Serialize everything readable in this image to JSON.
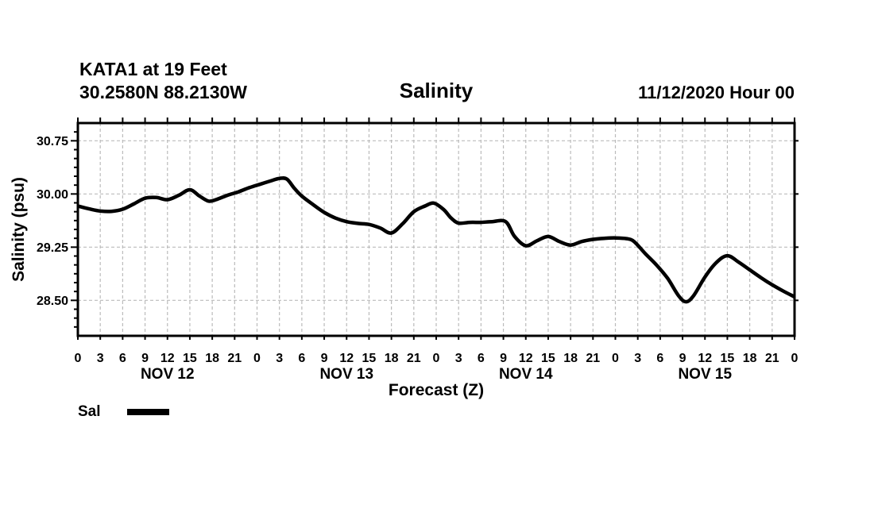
{
  "header": {
    "station_line1": "KATA1 at 19 Feet",
    "station_line2": "30.2580N 88.2130W",
    "title": "Salinity",
    "run_time": "11/12/2020 Hour 00"
  },
  "legend": {
    "label": "Sal",
    "swatch_color": "#000000"
  },
  "colors": {
    "line": "#000000",
    "grid": "#bbbbbb",
    "axis": "#000000",
    "text": "#000000",
    "background": "#ffffff"
  },
  "chart_data": {
    "type": "line",
    "title": "Salinity",
    "xlabel": "Forecast (Z)",
    "ylabel": "Salinity (psu)",
    "ylim": [
      28.0,
      31.0
    ],
    "xlim_hours": [
      0,
      96
    ],
    "grid": "dashed",
    "legend_position": "bottom-left",
    "yticks": [
      {
        "value": 30.75,
        "label": "30.75"
      },
      {
        "value": 30.0,
        "label": "30.00"
      },
      {
        "value": 29.25,
        "label": "29.25"
      },
      {
        "value": 28.5,
        "label": "28.50"
      }
    ],
    "y_minor_step": 0.125,
    "xtick_step_hours": 3,
    "xtick_labels": [
      "0",
      "3",
      "6",
      "9",
      "12",
      "15",
      "18",
      "21",
      "0",
      "3",
      "6",
      "9",
      "12",
      "15",
      "18",
      "21",
      "0",
      "3",
      "6",
      "9",
      "12",
      "15",
      "18",
      "21",
      "0",
      "3",
      "6",
      "9",
      "12",
      "15",
      "18",
      "21",
      "0"
    ],
    "day_labels": [
      {
        "label": "NOV 12",
        "center_hour": 12
      },
      {
        "label": "NOV 13",
        "center_hour": 36
      },
      {
        "label": "NOV 14",
        "center_hour": 60
      },
      {
        "label": "NOV 15",
        "center_hour": 84
      }
    ],
    "series": [
      {
        "name": "Sal",
        "color": "#000000",
        "points": [
          [
            0,
            29.83
          ],
          [
            1.5,
            29.79
          ],
          [
            3,
            29.76
          ],
          [
            4.5,
            29.755
          ],
          [
            6,
            29.785
          ],
          [
            7.5,
            29.86
          ],
          [
            9,
            29.94
          ],
          [
            10.5,
            29.95
          ],
          [
            12,
            29.92
          ],
          [
            13.5,
            29.98
          ],
          [
            15,
            30.06
          ],
          [
            16.3,
            29.97
          ],
          [
            17.5,
            29.9
          ],
          [
            18.5,
            29.92
          ],
          [
            20,
            29.98
          ],
          [
            21.5,
            30.03
          ],
          [
            23,
            30.09
          ],
          [
            24.5,
            30.14
          ],
          [
            26,
            30.19
          ],
          [
            27,
            30.22
          ],
          [
            28,
            30.21
          ],
          [
            29,
            30.08
          ],
          [
            30,
            29.97
          ],
          [
            31.5,
            29.85
          ],
          [
            33,
            29.74
          ],
          [
            34.5,
            29.66
          ],
          [
            36,
            29.61
          ],
          [
            37.5,
            29.585
          ],
          [
            39,
            29.57
          ],
          [
            40.5,
            29.52
          ],
          [
            42,
            29.45
          ],
          [
            43.5,
            29.58
          ],
          [
            45,
            29.75
          ],
          [
            46.5,
            29.83
          ],
          [
            47.7,
            29.87
          ],
          [
            49,
            29.78
          ],
          [
            50,
            29.66
          ],
          [
            51,
            29.59
          ],
          [
            52.5,
            29.6
          ],
          [
            54,
            29.6
          ],
          [
            55.5,
            29.61
          ],
          [
            57.3,
            29.61
          ],
          [
            58.5,
            29.4
          ],
          [
            60,
            29.27
          ],
          [
            61.5,
            29.34
          ],
          [
            63,
            29.4
          ],
          [
            64.5,
            29.33
          ],
          [
            66,
            29.28
          ],
          [
            67.5,
            29.33
          ],
          [
            69,
            29.36
          ],
          [
            70.5,
            29.375
          ],
          [
            72,
            29.38
          ],
          [
            73.5,
            29.37
          ],
          [
            74.5,
            29.33
          ],
          [
            76,
            29.16
          ],
          [
            77.5,
            29.0
          ],
          [
            79,
            28.81
          ],
          [
            80.5,
            28.56
          ],
          [
            81.5,
            28.48
          ],
          [
            82.5,
            28.57
          ],
          [
            84,
            28.83
          ],
          [
            85.5,
            29.03
          ],
          [
            87,
            29.13
          ],
          [
            88.5,
            29.04
          ],
          [
            90,
            28.93
          ],
          [
            91.5,
            28.82
          ],
          [
            93,
            28.72
          ],
          [
            94.5,
            28.63
          ],
          [
            96,
            28.55
          ]
        ]
      }
    ]
  }
}
